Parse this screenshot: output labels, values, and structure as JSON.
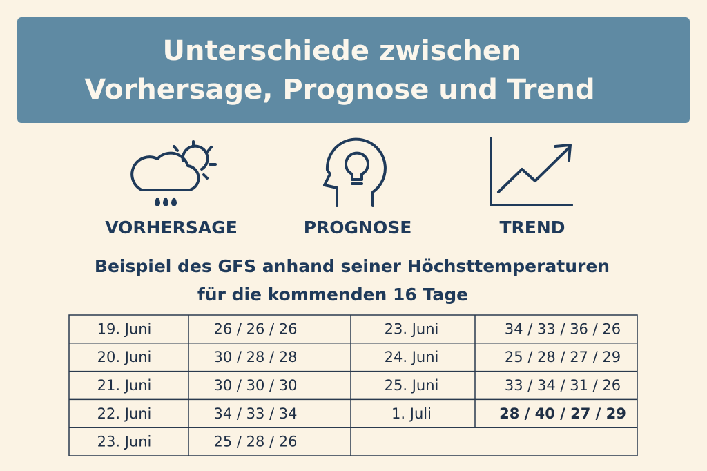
{
  "header": {
    "title_lines": [
      "Unterschiede zwischen",
      "Vorhersage, Prognose und Trend"
    ]
  },
  "icons": [
    {
      "label": "VORHERSAGE"
    },
    {
      "label": "PROGNOSE"
    },
    {
      "label": "TREND"
    }
  ],
  "subtitle_lines": [
    "Beispiel des GFS anhand seiner Höchsttemperaturen",
    "für die kommenden 16 Tage"
  ],
  "table": {
    "left": [
      {
        "date": "19. Juni",
        "temps": "26 / 26 / 26"
      },
      {
        "date": "20. Juni",
        "temps": "30 / 28 / 28"
      },
      {
        "date": "21. Juni",
        "temps": "30 / 30 / 30"
      },
      {
        "date": "22. Juni",
        "temps": "34 / 33 / 34"
      },
      {
        "date": "23. Juni",
        "temps": "25 / 28 / 26"
      }
    ],
    "right": [
      {
        "date": "23. Juni",
        "temps": "34 / 33 / 36 / 26"
      },
      {
        "date": "24. Juni",
        "temps": "25 / 28 / 27 / 29"
      },
      {
        "date": "25. Juni",
        "temps": "33 / 34 / 31 / 26"
      },
      {
        "date": "1. Juli",
        "temps": "28 / 40 / 27 / 29",
        "bold": true
      }
    ]
  }
}
